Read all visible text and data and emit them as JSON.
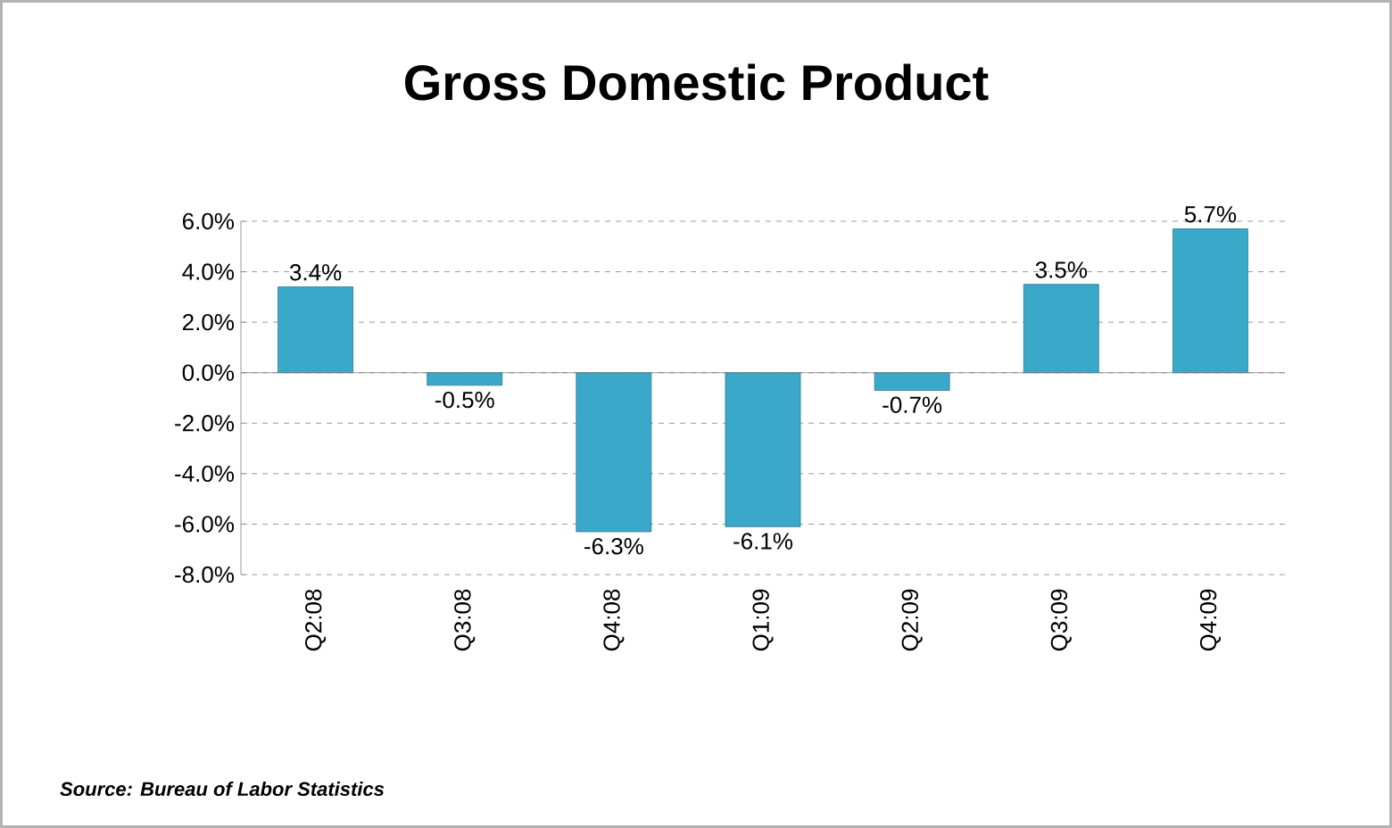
{
  "chart_data": {
    "type": "bar",
    "title": "Gross Domestic Product",
    "categories": [
      "Q2:08",
      "Q3:08",
      "Q4:08",
      "Q1:09",
      "Q2:09",
      "Q3:09",
      "Q4:09"
    ],
    "values": [
      3.4,
      -0.5,
      -6.3,
      -6.1,
      -0.7,
      3.5,
      5.7
    ],
    "value_labels": [
      "3.4%",
      "-0.5%",
      "-6.3%",
      "-6.1%",
      "-0.7%",
      "3.5%",
      "5.7%"
    ],
    "color": "#3aa9c9",
    "ylim": [
      -8,
      6
    ],
    "yticks": [
      {
        "value": -8,
        "label": "-8.0%"
      },
      {
        "value": -6,
        "label": "-6.0%"
      },
      {
        "value": -4,
        "label": "-4.0%"
      },
      {
        "value": -2,
        "label": "-2.0%"
      },
      {
        "value": 0,
        "label": "0.0%"
      },
      {
        "value": 2,
        "label": "2.0%"
      },
      {
        "value": 4,
        "label": "4.0%"
      },
      {
        "value": 6,
        "label": "6.0%"
      }
    ],
    "grid": "y",
    "annotations": [
      "Source: Bureau of Labor Statistics"
    ]
  }
}
